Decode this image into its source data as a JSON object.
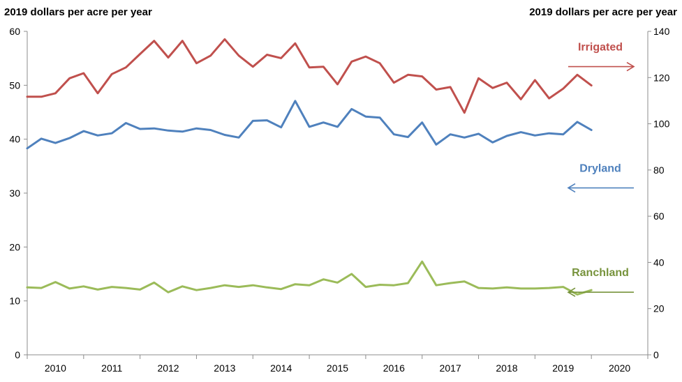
{
  "chart_data": {
    "type": "line",
    "left_axis_title": "2019 dollars per acre per year",
    "right_axis_title": "2019 dollars per acre per year",
    "left_ylim": [
      0,
      60
    ],
    "left_yticks": [
      0,
      10,
      20,
      30,
      40,
      50,
      60
    ],
    "right_ylim": [
      0,
      140
    ],
    "right_yticks": [
      0,
      20,
      40,
      60,
      80,
      100,
      120,
      140
    ],
    "x_range": [
      2009.5,
      2020.5
    ],
    "year_labels": [
      "2010",
      "2011",
      "2012",
      "2013",
      "2014",
      "2015",
      "2016",
      "2017",
      "2018",
      "2019",
      "2020"
    ],
    "grid": false,
    "x_step": 0.25,
    "x_start": 2009.5,
    "series": [
      {
        "name": "Irrigated",
        "axis": "right",
        "color": "#c0504d",
        "arrow": "right",
        "values": [
          111.7,
          111.7,
          113.2,
          119.7,
          121.9,
          113.2,
          121.5,
          124.4,
          130.2,
          135.9,
          128.7,
          135.9,
          126.2,
          129.5,
          136.6,
          129.5,
          124.7,
          129.9,
          128.4,
          134.8,
          124.4,
          124.7,
          117.1,
          126.9,
          129.1,
          126.2,
          117.8,
          121.2,
          120.5,
          114.8,
          115.9,
          104.8,
          119.7,
          115.5,
          117.8,
          110.6,
          118.9,
          111.0,
          115.2,
          121.2,
          116.6
        ]
      },
      {
        "name": "Dryland",
        "axis": "left",
        "color": "#4f81bd",
        "arrow": "left",
        "values": [
          38.3,
          40.1,
          39.3,
          40.2,
          41.5,
          40.7,
          41.1,
          43.0,
          41.9,
          42.0,
          41.6,
          41.4,
          42.0,
          41.7,
          40.8,
          40.3,
          43.4,
          43.5,
          42.2,
          47.1,
          42.3,
          43.1,
          42.3,
          45.6,
          44.2,
          44.0,
          40.9,
          40.4,
          43.1,
          39.0,
          40.9,
          40.3,
          41.0,
          39.4,
          40.6,
          41.3,
          40.7,
          41.1,
          40.9,
          43.2,
          41.7
        ]
      },
      {
        "name": "Ranchland",
        "axis": "left",
        "color": "#9bbb59",
        "label_color": "#77933c",
        "arrow": "left",
        "values": [
          12.5,
          12.4,
          13.5,
          12.3,
          12.7,
          12.1,
          12.6,
          12.4,
          12.1,
          13.4,
          11.6,
          12.7,
          12.0,
          12.4,
          12.9,
          12.6,
          12.9,
          12.5,
          12.2,
          13.1,
          12.9,
          14.0,
          13.4,
          15.0,
          12.6,
          13.0,
          12.9,
          13.3,
          17.3,
          12.9,
          13.3,
          13.6,
          12.4,
          12.3,
          12.5,
          12.3,
          12.3,
          12.4,
          12.6,
          11.2,
          12.0
        ]
      }
    ]
  }
}
